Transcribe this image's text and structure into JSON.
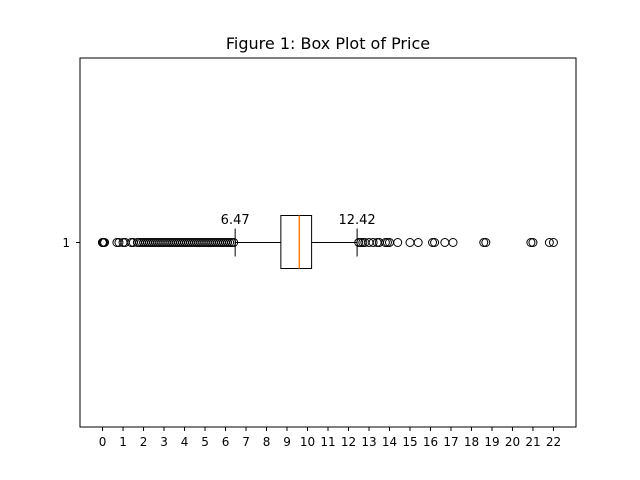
{
  "chart_data": {
    "type": "boxplot",
    "orientation": "horizontal",
    "title": "Figure 1: Box Plot of Price",
    "xlabel": "",
    "ylabel": "",
    "xlim": [
      -1.1,
      23.1
    ],
    "x_ticks": [
      0,
      1,
      2,
      3,
      4,
      5,
      6,
      7,
      8,
      9,
      10,
      11,
      12,
      13,
      14,
      15,
      16,
      17,
      18,
      19,
      20,
      21,
      22
    ],
    "y_tick_label": "1",
    "grid": false,
    "box": {
      "whisker_low": 6.47,
      "q1": 8.7,
      "median": 9.6,
      "q3": 10.2,
      "whisker_high": 12.42
    },
    "annotations": [
      {
        "text": "6.47",
        "value": 6.47
      },
      {
        "text": "12.42",
        "value": 12.42
      }
    ],
    "outliers_low": [
      0,
      0,
      0,
      0.05,
      0.1,
      0.7,
      0.8,
      1.0,
      1.1,
      1.4,
      1.5,
      1.7,
      1.8,
      1.9,
      2.0,
      2.1,
      2.2,
      2.3,
      2.4,
      2.5,
      2.6,
      2.7,
      2.8,
      2.9,
      3.0,
      3.1,
      3.2,
      3.3,
      3.4,
      3.5,
      3.6,
      3.7,
      3.8,
      3.9,
      4.0,
      4.1,
      4.2,
      4.3,
      4.4,
      4.5,
      4.6,
      4.7,
      4.8,
      4.9,
      5.0,
      5.1,
      5.2,
      5.3,
      5.4,
      5.5,
      5.6,
      5.7,
      5.8,
      5.9,
      6.0,
      6.1,
      6.2,
      6.3,
      6.4
    ],
    "outliers_high": [
      12.5,
      12.6,
      12.7,
      12.8,
      13.0,
      13.2,
      13.4,
      13.5,
      13.8,
      13.9,
      14.0,
      14.4,
      15.0,
      15.4,
      16.1,
      16.2,
      16.7,
      17.1,
      18.6,
      18.7,
      20.9,
      21.0,
      21.8,
      22.0
    ],
    "colors": {
      "box": "#000000",
      "median": "#ff7f0e",
      "outlier": "#000000"
    }
  }
}
